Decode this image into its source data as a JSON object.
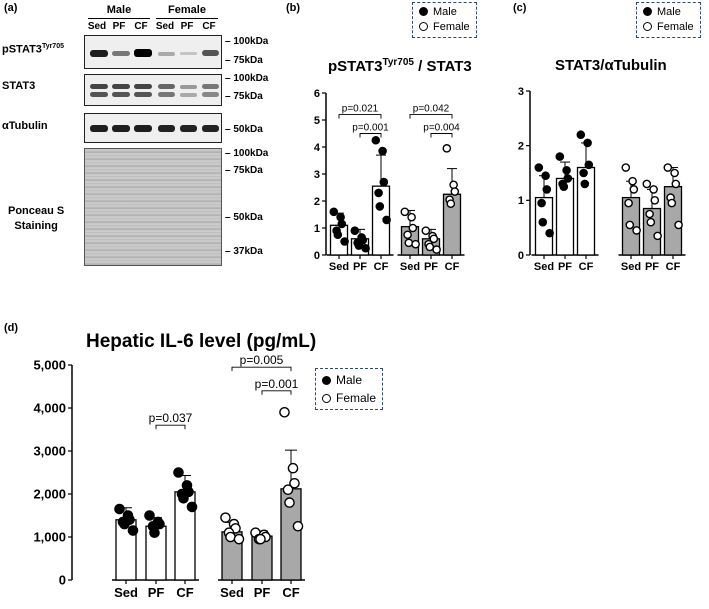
{
  "panel_a": {
    "label": "(a)",
    "groups": [
      "Male",
      "Female"
    ],
    "lanes": [
      "Sed",
      "PF",
      "CF",
      "Sed",
      "PF",
      "CF"
    ],
    "rows": {
      "pstat3": "pSTAT3",
      "pstat3_sup": "Tyr705",
      "stat3": "STAT3",
      "tubulin": "αTubulin",
      "ponceau_1": "Ponceau S",
      "ponceau_2": "Staining"
    },
    "markers": {
      "m1": "100kDa",
      "m2": "75kDa",
      "m3": "100kDa",
      "m4": "75kDa",
      "m5": "50kDa",
      "m6": "100kDa",
      "m7": "75kDa",
      "m8": "50kDa",
      "m9": "37kDa"
    }
  },
  "legend": {
    "male": "Male",
    "female": "Female"
  },
  "chart_data": [
    {
      "panel": "(b)",
      "type": "bar",
      "title": "pSTAT3",
      "title_sup": "Tyr705",
      "title_suffix": " / STAT3",
      "ylim": [
        0,
        6
      ],
      "yticks": [
        "0",
        "1",
        "2",
        "3",
        "4",
        "5",
        "6"
      ],
      "categories": [
        "Sed",
        "PF",
        "CF",
        "Sed",
        "PF",
        "CF"
      ],
      "sexes": [
        "male",
        "male",
        "male",
        "female",
        "female",
        "female"
      ],
      "values": [
        1.1,
        0.6,
        2.55,
        1.05,
        0.6,
        2.25
      ],
      "errors": [
        0.45,
        0.35,
        1.15,
        0.6,
        0.35,
        0.95
      ],
      "points": [
        [
          1.6,
          1.4,
          1.15,
          0.9,
          0.75,
          0.5
        ],
        [
          0.9,
          0.65,
          0.55,
          0.45,
          0.35,
          0.25
        ],
        [
          4.25,
          3.85,
          2.7,
          2.3,
          1.8,
          1.3
        ],
        [
          1.6,
          1.4,
          1.0,
          0.75,
          0.45,
          0.4
        ],
        [
          0.9,
          0.7,
          0.6,
          0.4,
          0.3,
          0.2
        ],
        [
          3.95,
          2.6,
          2.35,
          2.05,
          1.9
        ]
      ],
      "brackets": [
        {
          "from": 0,
          "to": 2,
          "y": 5.2,
          "label": "p=0.021"
        },
        {
          "from": 1,
          "to": 2,
          "y": 4.5,
          "label": "p=0.001"
        },
        {
          "from": 3,
          "to": 5,
          "y": 5.2,
          "label": "p=0.042"
        },
        {
          "from": 4,
          "to": 5,
          "y": 4.5,
          "label": "p=0.004"
        }
      ]
    },
    {
      "panel": "(c)",
      "type": "bar",
      "title": "STAT3/αTubulin",
      "ylim": [
        0,
        3
      ],
      "yticks": [
        "0",
        "1",
        "2",
        "3"
      ],
      "categories": [
        "Sed",
        "PF",
        "CF",
        "Sed",
        "PF",
        "CF"
      ],
      "sexes": [
        "male",
        "male",
        "male",
        "female",
        "female",
        "female"
      ],
      "values": [
        1.05,
        1.4,
        1.6,
        1.05,
        0.85,
        1.25
      ],
      "errors": [
        0.4,
        0.3,
        0.45,
        0.3,
        0.35,
        0.35
      ],
      "points": [
        [
          1.6,
          1.45,
          1.2,
          0.95,
          0.6,
          0.4
        ],
        [
          1.8,
          1.55,
          1.4,
          1.3,
          1.25
        ],
        [
          2.2,
          2.05,
          1.65,
          1.5,
          1.3
        ],
        [
          1.6,
          1.35,
          1.2,
          0.95,
          0.55,
          0.45
        ],
        [
          1.3,
          1.2,
          1.0,
          0.75,
          0.6,
          0.35
        ],
        [
          1.6,
          1.5,
          1.3,
          1.05,
          0.95,
          0.55
        ]
      ],
      "brackets": []
    },
    {
      "panel": "(d)",
      "type": "bar",
      "title": "Hepatic IL-6 level (pg/mL)",
      "ylim": [
        0,
        5000
      ],
      "yticks": [
        "0",
        "1,000",
        "2,000",
        "3,000",
        "4,000",
        "5,000"
      ],
      "categories": [
        "Sed",
        "PF",
        "CF",
        "Sed",
        "PF",
        "CF"
      ],
      "sexes": [
        "male",
        "male",
        "male",
        "female",
        "female",
        "female"
      ],
      "values": [
        1400,
        1250,
        2050,
        1120,
        1020,
        2120
      ],
      "errors": [
        280,
        200,
        380,
        220,
        120,
        900
      ],
      "points": [
        [
          1650,
          1500,
          1400,
          1350,
          1300,
          1150
        ],
        [
          1500,
          1350,
          1300,
          1250,
          1100
        ],
        [
          2500,
          2200,
          2050,
          2000,
          1900,
          1700
        ],
        [
          1450,
          1300,
          1200,
          1100,
          1000,
          950
        ],
        [
          1100,
          1050,
          1000,
          950,
          950
        ],
        [
          3900,
          2600,
          2250,
          2100,
          1800,
          1250
        ]
      ],
      "brackets": [
        {
          "from": 1,
          "to": 2,
          "y": 3600,
          "label": "p=0.037"
        },
        {
          "from": 3,
          "to": 5,
          "y": 4950,
          "label": "p=0.005"
        },
        {
          "from": 4,
          "to": 5,
          "y": 4400,
          "label": "p=0.001"
        }
      ]
    }
  ]
}
